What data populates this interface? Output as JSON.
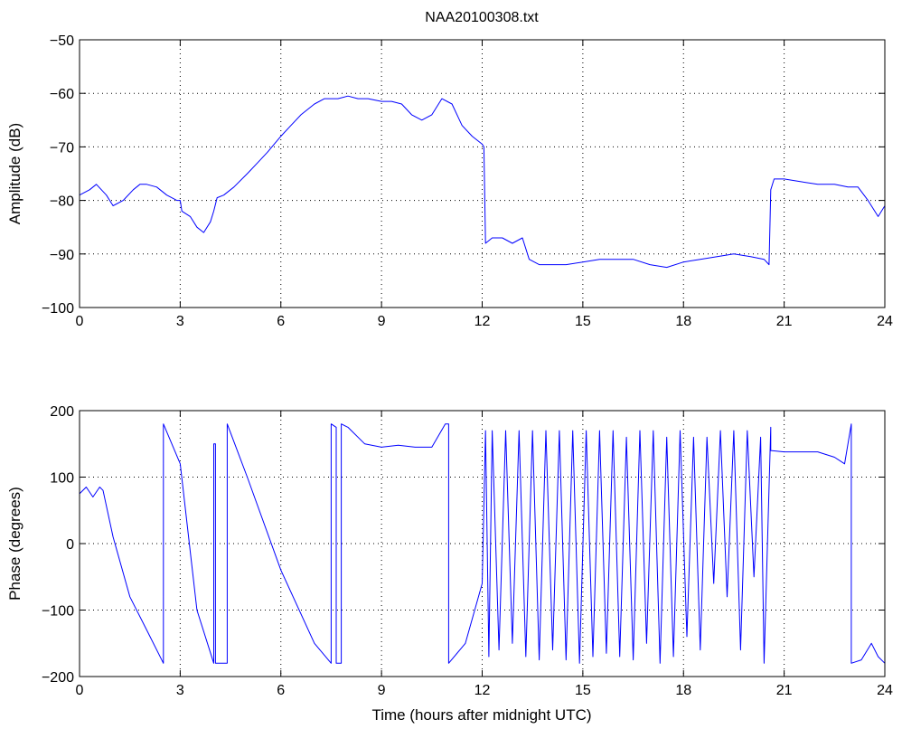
{
  "chart_data": [
    {
      "type": "line",
      "title": "NAA20100308.txt",
      "xlabel": "",
      "ylabel": "Amplitude (dB)",
      "xlim": [
        0,
        24
      ],
      "ylim": [
        -100,
        -50
      ],
      "xticks": [
        0,
        3,
        6,
        9,
        12,
        15,
        18,
        21,
        24
      ],
      "yticks": [
        -100,
        -90,
        -80,
        -70,
        -60,
        -50
      ],
      "grid": true,
      "color": "#0000ff",
      "series": [
        {
          "x": [
            0,
            0.3,
            0.5,
            0.8,
            1.0,
            1.3,
            1.6,
            1.8,
            2.0,
            2.3,
            2.6,
            2.9,
            3.0,
            3.05,
            3.3,
            3.5,
            3.7,
            3.9,
            4.0,
            4.1,
            4.3,
            4.6,
            5.0,
            5.3,
            5.6,
            6.0,
            6.3,
            6.6,
            7.0,
            7.3,
            7.7,
            8.0,
            8.3,
            8.6,
            9.0,
            9.3,
            9.6,
            9.9,
            10.2,
            10.5,
            10.8,
            11.1,
            11.4,
            11.7,
            12.0,
            12.05,
            12.1,
            12.3,
            12.6,
            12.9,
            13.2,
            13.4,
            13.7,
            14.0,
            14.5,
            15.0,
            15.5,
            16.0,
            16.5,
            17.0,
            17.5,
            18.0,
            18.5,
            19.0,
            19.5,
            20.0,
            20.4,
            20.55,
            20.6,
            20.7,
            21.0,
            21.5,
            22.0,
            22.5,
            22.9,
            23.2,
            23.5,
            23.8,
            24.0
          ],
          "y": [
            -79,
            -78,
            -77,
            -79,
            -81,
            -80,
            -78,
            -77,
            -77,
            -77.5,
            -79,
            -80,
            -80,
            -82,
            -83,
            -85,
            -86,
            -84,
            -82,
            -79.5,
            -79,
            -77.5,
            -75,
            -73,
            -71,
            -68,
            -66,
            -64,
            -62,
            -61,
            -61,
            -60.5,
            -61,
            -61,
            -61.5,
            -61.5,
            -62,
            -64,
            -65,
            -64,
            -61,
            -62,
            -66,
            -68,
            -69.5,
            -70,
            -88,
            -87,
            -87,
            -88,
            -87,
            -91,
            -92,
            -92,
            -92,
            -91.5,
            -91,
            -91,
            -91,
            -92,
            -92.5,
            -91.5,
            -91,
            -90.5,
            -90,
            -90.5,
            -91,
            -92,
            -78,
            -76,
            -76,
            -76.5,
            -77,
            -77,
            -77.5,
            -77.5,
            -80,
            -83,
            -81
          ]
        }
      ]
    },
    {
      "type": "line",
      "title": "",
      "xlabel": "Time (hours after midnight UTC)",
      "ylabel": "Phase (degrees)",
      "xlim": [
        0,
        24
      ],
      "ylim": [
        -200,
        200
      ],
      "xticks": [
        0,
        3,
        6,
        9,
        12,
        15,
        18,
        21,
        24
      ],
      "yticks": [
        -200,
        -100,
        0,
        100,
        200
      ],
      "grid": true,
      "color": "#0000ff",
      "series": [
        {
          "x": [
            0,
            0.2,
            0.4,
            0.6,
            0.7,
            1.0,
            1.5,
            2.0,
            2.5,
            2.5,
            3.0,
            3.5,
            4.0,
            4.0,
            4.05,
            4.05,
            4.4,
            4.4,
            5.0,
            6.0,
            7.0,
            7.5,
            7.5,
            7.65,
            7.65,
            7.8,
            7.8,
            8.0,
            8.0,
            8.5,
            9.0,
            9.5,
            10.0,
            10.5,
            10.9,
            11.0,
            11.0,
            11.5,
            12.0,
            12.1,
            12.2,
            12.3,
            12.5,
            12.7,
            12.9,
            13.1,
            13.3,
            13.5,
            13.7,
            13.9,
            14.1,
            14.3,
            14.5,
            14.7,
            14.9,
            15.1,
            15.3,
            15.5,
            15.7,
            15.9,
            16.1,
            16.3,
            16.5,
            16.7,
            16.9,
            17.1,
            17.3,
            17.5,
            17.7,
            17.9,
            18.1,
            18.3,
            18.5,
            18.7,
            18.9,
            19.1,
            19.3,
            19.5,
            19.7,
            19.9,
            20.1,
            20.3,
            20.4,
            20.6,
            20.6,
            21.0,
            21.5,
            22.0,
            22.5,
            22.8,
            23.0,
            23.0,
            23.0,
            23.3,
            23.6,
            23.8,
            24.0
          ],
          "y": [
            75,
            85,
            70,
            85,
            80,
            10,
            -80,
            -130,
            -180,
            180,
            120,
            -100,
            -180,
            150,
            150,
            -180,
            -180,
            180,
            100,
            -40,
            -150,
            -180,
            180,
            175,
            -180,
            -180,
            180,
            175,
            175,
            150,
            145,
            148,
            145,
            145,
            180,
            180,
            -180,
            -150,
            -60,
            170,
            -170,
            170,
            -160,
            170,
            -150,
            170,
            -170,
            170,
            -175,
            170,
            -160,
            170,
            -175,
            170,
            -180,
            170,
            -170,
            170,
            -165,
            170,
            -170,
            160,
            -175,
            170,
            -150,
            170,
            -180,
            160,
            -170,
            170,
            -140,
            160,
            -160,
            160,
            -60,
            170,
            -80,
            170,
            -160,
            170,
            -50,
            160,
            -180,
            175,
            140,
            138,
            138,
            138,
            130,
            120,
            180,
            180,
            -180,
            -175,
            -150,
            -170,
            -180
          ]
        }
      ]
    }
  ]
}
